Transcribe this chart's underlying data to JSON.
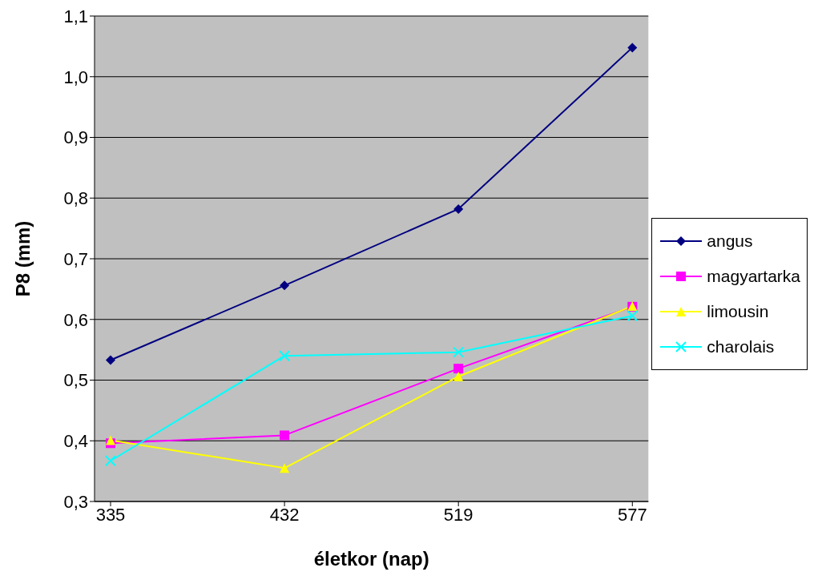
{
  "chart_data": {
    "type": "line",
    "xlabel": "életkor (nap)",
    "ylabel": "P8 (mm)",
    "categories": [
      "335",
      "432",
      "519",
      "577"
    ],
    "ylim": [
      0.3,
      1.1
    ],
    "yticks": [
      {
        "value": 0.3,
        "label": "0,3"
      },
      {
        "value": 0.4,
        "label": "0,4"
      },
      {
        "value": 0.5,
        "label": "0,5"
      },
      {
        "value": 0.6,
        "label": "0,6"
      },
      {
        "value": 0.7,
        "label": "0,7"
      },
      {
        "value": 0.8,
        "label": "0,8"
      },
      {
        "value": 0.9,
        "label": "0,9"
      },
      {
        "value": 1.0,
        "label": "1,0"
      },
      {
        "value": 1.1,
        "label": "1,1"
      }
    ],
    "grid": "y",
    "legend": "right",
    "series": [
      {
        "name": "angus",
        "color": "#000080",
        "marker": "diamond",
        "values": [
          0.533,
          0.656,
          0.782,
          1.048
        ]
      },
      {
        "name": "magyartarka",
        "color": "#ff00ff",
        "marker": "square",
        "values": [
          0.396,
          0.409,
          0.519,
          0.621
        ]
      },
      {
        "name": "limousin",
        "color": "#ffff00",
        "marker": "triangle",
        "values": [
          0.401,
          0.355,
          0.506,
          0.622
        ]
      },
      {
        "name": "charolais",
        "color": "#00ffff",
        "marker": "cross",
        "values": [
          0.367,
          0.54,
          0.546,
          0.606
        ]
      }
    ]
  }
}
